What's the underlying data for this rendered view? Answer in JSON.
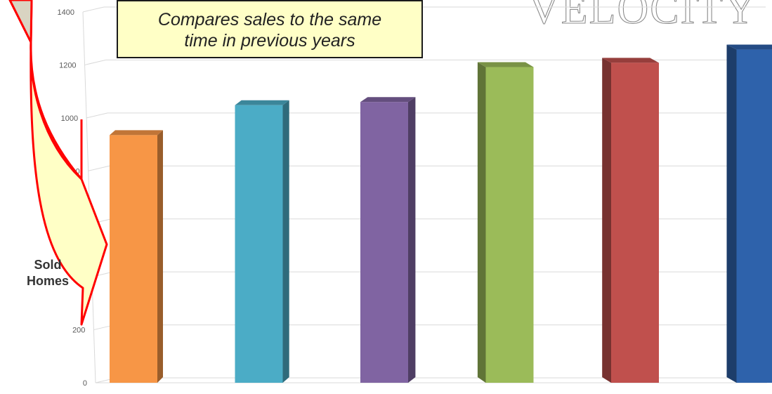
{
  "watermark": "VELOCITY",
  "callout": {
    "line1": "Compares sales to the same",
    "line2": "time in previous years"
  },
  "chart_data": {
    "type": "bar",
    "categories": [
      "",
      "",
      "",
      "",
      "",
      ""
    ],
    "values": [
      935,
      1048,
      1060,
      1192,
      1208,
      1258
    ],
    "colors": [
      "#f79646",
      "#4bacc6",
      "#8064a2",
      "#9bbb59",
      "#c0504d",
      "#2e62ab"
    ],
    "ylabel": "Sold Homes",
    "ylim": [
      0,
      1400
    ],
    "yticks": [
      "0",
      "200",
      "400",
      "600",
      "800",
      "1000",
      "1200",
      "1400"
    ],
    "grid": true,
    "style": "3d-columns"
  }
}
